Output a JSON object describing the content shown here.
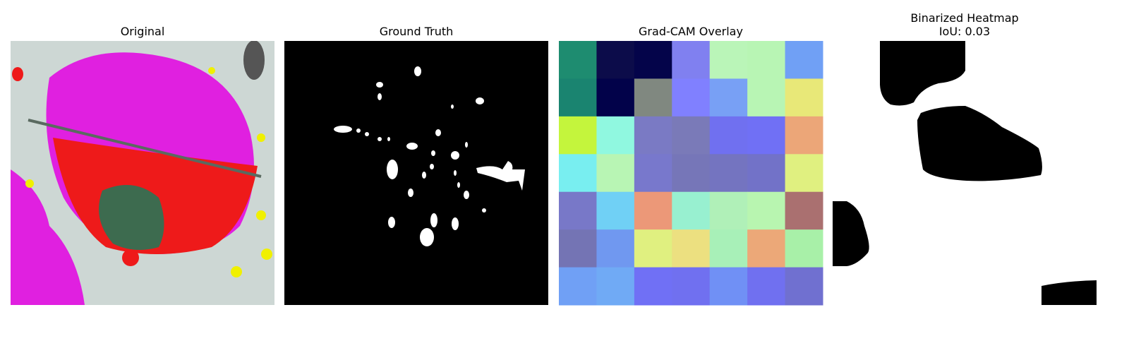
{
  "panels": [
    {
      "title": [
        "Original"
      ]
    },
    {
      "title": [
        "Ground Truth"
      ]
    },
    {
      "title": [
        "Grad-CAM Overlay"
      ]
    },
    {
      "title": [
        "Binarized Heatmap",
        "IoU: 0.03"
      ]
    }
  ]
}
